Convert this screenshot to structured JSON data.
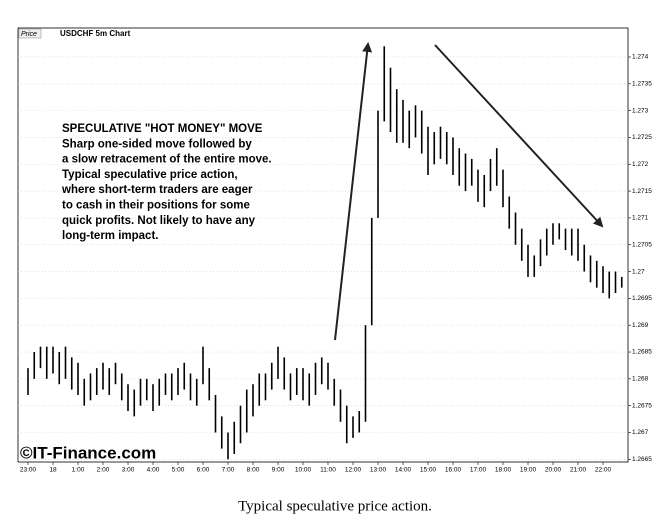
{
  "header": {
    "badge": "Price",
    "title": "USDCHF 5m Chart"
  },
  "chart_data": {
    "type": "ohlc",
    "categories": [
      "23:00",
      null,
      null,
      null,
      "18",
      null,
      null,
      null,
      "1:00",
      null,
      null,
      null,
      "2:00",
      null,
      null,
      null,
      "3:00",
      null,
      null,
      null,
      "4:00",
      null,
      null,
      null,
      "5:00",
      null,
      null,
      null,
      "6:00",
      null,
      null,
      null,
      "7:00",
      null,
      null,
      null,
      "8:00",
      null,
      null,
      null,
      "9:00",
      null,
      null,
      null,
      "10:00",
      null,
      null,
      null,
      "11:00",
      null,
      null,
      null,
      "12:00",
      null,
      null,
      null,
      "13:00",
      null,
      null,
      null,
      "14:00",
      null,
      null,
      null,
      "15:00",
      null,
      null,
      null,
      "16:00",
      null,
      null,
      null,
      "17:00",
      null,
      null,
      null,
      "18:00",
      null,
      null,
      null,
      "19:00",
      null,
      null,
      null,
      "20:00",
      null,
      null,
      null,
      "21:00",
      null,
      null,
      null,
      "22:00",
      null,
      null,
      null
    ],
    "low": [
      1.2677,
      1.268,
      1.2682,
      1.268,
      1.2681,
      1.2679,
      1.268,
      1.2678,
      1.2677,
      1.2675,
      1.2676,
      1.2677,
      1.2678,
      1.2677,
      1.2679,
      1.2676,
      1.2674,
      1.2673,
      1.2675,
      1.2676,
      1.2674,
      1.2675,
      1.2677,
      1.2676,
      1.2677,
      1.2678,
      1.2676,
      1.2675,
      1.2679,
      1.2676,
      1.267,
      1.2667,
      1.2665,
      1.2666,
      1.2668,
      1.267,
      1.2673,
      1.2675,
      1.2676,
      1.2678,
      1.268,
      1.2678,
      1.2676,
      1.2677,
      1.2676,
      1.2675,
      1.2677,
      1.2679,
      1.2678,
      1.2675,
      1.2672,
      1.2668,
      1.2669,
      1.267,
      1.2672,
      1.269,
      1.271,
      1.2728,
      1.2726,
      1.2724,
      1.2724,
      1.2723,
      1.2725,
      1.2722,
      1.2718,
      1.272,
      1.2721,
      1.272,
      1.2718,
      1.2716,
      1.2715,
      1.2716,
      1.2713,
      1.2712,
      1.2715,
      1.2716,
      1.2712,
      1.2708,
      1.2705,
      1.2702,
      1.2699,
      1.2699,
      1.2701,
      1.2703,
      1.2705,
      1.2706,
      1.2704,
      1.2703,
      1.2702,
      1.27,
      1.2698,
      1.2697,
      1.2696,
      1.2695,
      1.2696,
      1.2697
    ],
    "high": [
      1.2682,
      1.2685,
      1.2686,
      1.2686,
      1.2686,
      1.2685,
      1.2686,
      1.2684,
      1.2683,
      1.268,
      1.2681,
      1.2682,
      1.2683,
      1.2682,
      1.2683,
      1.2681,
      1.2679,
      1.2678,
      1.268,
      1.268,
      1.2679,
      1.268,
      1.2681,
      1.2681,
      1.2682,
      1.2683,
      1.2681,
      1.268,
      1.2686,
      1.2682,
      1.2677,
      1.2673,
      1.267,
      1.2672,
      1.2675,
      1.2678,
      1.2679,
      1.2681,
      1.2681,
      1.2683,
      1.2686,
      1.2684,
      1.2681,
      1.2682,
      1.2682,
      1.2681,
      1.2683,
      1.2684,
      1.2683,
      1.268,
      1.2678,
      1.2675,
      1.2673,
      1.2674,
      1.269,
      1.271,
      1.273,
      1.2742,
      1.2738,
      1.2734,
      1.2732,
      1.273,
      1.2731,
      1.273,
      1.2727,
      1.2726,
      1.2727,
      1.2726,
      1.2725,
      1.2723,
      1.2722,
      1.2721,
      1.2719,
      1.2718,
      1.2721,
      1.2723,
      1.2719,
      1.2714,
      1.2711,
      1.2708,
      1.2705,
      1.2703,
      1.2706,
      1.2708,
      1.2709,
      1.2709,
      1.2708,
      1.2708,
      1.2708,
      1.2705,
      1.2703,
      1.2702,
      1.2701,
      1.27,
      1.27,
      1.2699
    ],
    "color": "#000000",
    "ylim": [
      1.26645,
      1.27454
    ],
    "yticks": [
      1.2665,
      1.267,
      1.2675,
      1.268,
      1.2685,
      1.269,
      1.2695,
      1.27,
      1.2705,
      1.271,
      1.2715,
      1.272,
      1.2725,
      1.273,
      1.2735,
      1.274
    ],
    "grid": true,
    "annotation": [
      "SPECULATIVE \"HOT MONEY\" MOVE",
      "Sharp one-sided move followed by",
      "a slow retracement of the entire move.",
      "Typical speculative price action,",
      "where short-term traders are eager",
      "to cash in their positions for some",
      "quick profits.  Not likely to have any",
      "long-term impact."
    ],
    "watermark": "©IT-Finance.com"
  },
  "caption": "Typical speculative price action."
}
